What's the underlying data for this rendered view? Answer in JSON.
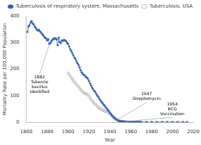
{
  "chart_data": {
    "type": "line",
    "xlabel": "Year",
    "ylabel": "Mortality Rate per 100,000 Population",
    "xlim": [
      1860,
      2020
    ],
    "ylim": [
      0,
      400
    ],
    "xticks": [
      1860,
      1880,
      1900,
      1920,
      1940,
      1960,
      1980,
      2000,
      2020
    ],
    "yticks": [
      0,
      100,
      200,
      300,
      400
    ],
    "grid": false,
    "legend": "upper right",
    "series": [
      {
        "name": "Tuberculosis of respiratory system, Massachusetts",
        "color": "#3060b0",
        "marker": "dot",
        "line_style": "solid",
        "x": [
          1861,
          1862,
          1863,
          1864,
          1865,
          1866,
          1867,
          1868,
          1869,
          1870,
          1871,
          1872,
          1873,
          1874,
          1875,
          1876,
          1877,
          1878,
          1879,
          1880,
          1881,
          1882,
          1883,
          1884,
          1885,
          1886,
          1887,
          1888,
          1889,
          1890,
          1891,
          1892,
          1893,
          1894,
          1895,
          1896,
          1897,
          1898,
          1899,
          1900,
          1901,
          1902,
          1903,
          1904,
          1905,
          1906,
          1907,
          1908,
          1909,
          1910,
          1911,
          1912,
          1913,
          1914,
          1915,
          1916,
          1917,
          1918,
          1919,
          1920,
          1921,
          1922,
          1923,
          1924,
          1925,
          1926,
          1927,
          1928,
          1929,
          1930,
          1931,
          1932,
          1933,
          1934,
          1935,
          1936,
          1937,
          1938,
          1939,
          1940,
          1941,
          1942,
          1943,
          1944,
          1945,
          1946,
          1947,
          1948,
          1949,
          1950,
          1951,
          1952,
          1953,
          1954,
          1955,
          1956,
          1957,
          1958,
          1959,
          1960,
          1961,
          1962,
          1963,
          1964,
          1965,
          1966,
          1967,
          1968,
          1969,
          1970,
          1975,
          1980,
          1985,
          1990,
          1995,
          2000,
          2005,
          2010,
          2014
        ],
        "values": [
          340,
          360,
          365,
          375,
          380,
          372,
          368,
          360,
          355,
          348,
          345,
          348,
          342,
          338,
          332,
          328,
          322,
          318,
          315,
          308,
          312,
          295,
          298,
          305,
          310,
          315,
          313,
          316,
          312,
          290,
          318,
          302,
          298,
          308,
          306,
          310,
          308,
          305,
          298,
          295,
          285,
          275,
          268,
          260,
          252,
          244,
          238,
          230,
          222,
          215,
          206,
          196,
          188,
          182,
          178,
          176,
          170,
          168,
          163,
          155,
          146,
          138,
          130,
          124,
          118,
          114,
          106,
          100,
          95,
          88,
          82,
          76,
          72,
          66,
          62,
          56,
          52,
          46,
          42,
          36,
          32,
          26,
          22,
          18,
          15,
          11,
          9,
          6,
          5,
          4,
          3.5,
          3,
          2.5,
          2,
          1.8,
          1.5,
          1.2,
          1.0,
          0.8,
          0.6,
          0.55,
          0.5,
          0.45,
          0.4,
          0.35,
          0.32,
          0.28,
          0.25,
          0.22,
          0.2,
          0.15,
          0.12,
          0.1,
          0.08,
          0.07,
          0.06,
          0.05,
          0.04,
          0.03
        ]
      },
      {
        "name": "Tuberculosis, USA",
        "color": "#999999",
        "marker": "open_circle",
        "line_style": "solid",
        "x": [
          1900,
          1901,
          1902,
          1903,
          1904,
          1905,
          1906,
          1907,
          1908,
          1909,
          1910,
          1911,
          1912,
          1913,
          1914,
          1915,
          1916,
          1917,
          1918,
          1919,
          1920,
          1921,
          1922,
          1923,
          1924,
          1925,
          1926,
          1927,
          1928,
          1929,
          1930,
          1931,
          1932,
          1933,
          1934,
          1935,
          1936,
          1937,
          1938,
          1939,
          1940,
          1941,
          1942,
          1943,
          1944,
          1945,
          1946,
          1947,
          1948,
          1949,
          1950,
          1951,
          1952,
          1953,
          1954,
          1955,
          1956,
          1957,
          1958,
          1959,
          1960,
          1961,
          1962,
          1963,
          1964,
          1965,
          1966,
          1967,
          1968,
          1969,
          1970,
          1975,
          1980,
          1985,
          1990,
          1995,
          2000,
          2005,
          2010,
          2014
        ],
        "values": [
          185,
          180,
          174,
          168,
          162,
          157,
          152,
          147,
          142,
          137,
          133,
          128,
          123,
          118,
          114,
          111,
          108,
          107,
          107,
          103,
          98,
          92,
          86,
          81,
          76,
          71,
          68,
          64,
          60,
          56,
          53,
          50,
          48,
          46,
          44,
          42,
          40,
          38,
          36,
          33,
          30,
          28,
          24,
          20,
          16,
          14,
          10,
          9,
          7,
          5,
          4.5,
          4,
          3.2,
          2.8,
          2.4,
          2.1,
          1.9,
          1.7,
          1.4,
          1.2,
          1.0,
          0.95,
          0.88,
          0.8,
          0.72,
          0.65,
          0.58,
          0.52,
          0.46,
          0.4,
          0.35,
          0.25,
          0.18,
          0.14,
          0.1,
          0.08,
          0.06,
          0.05,
          0.04,
          0.03
        ]
      }
    ],
    "annotations": [
      {
        "text": "1882\nTubercle\nbacillus\nidentified",
        "x": 1882,
        "y": 293,
        "color": "#aaaaaa"
      },
      {
        "text": "1947\nStreptomycin",
        "x": 1947,
        "y": 9,
        "color": "#aaaaaa"
      },
      {
        "text": "1954\nBCG\nVaccination",
        "x": 1955,
        "y": 3,
        "color": "#aaaaaa"
      }
    ]
  }
}
